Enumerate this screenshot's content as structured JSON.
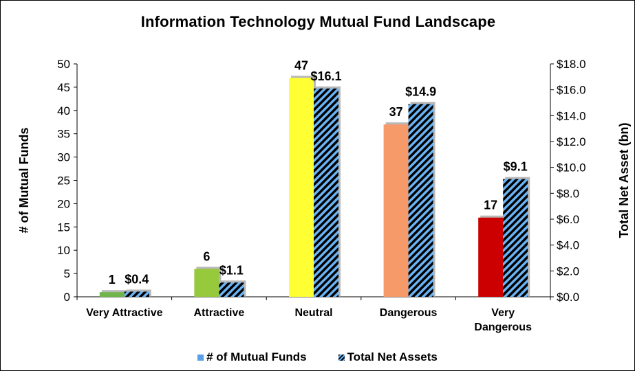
{
  "chart_data": {
    "type": "bar",
    "title": "Information Technology  Mutual Fund Landscape",
    "categories": [
      "Very Attractive",
      "Attractive",
      "Neutral",
      "Dangerous",
      "Very Dangerous"
    ],
    "category_lines": [
      [
        "Very Attractive"
      ],
      [
        "Attractive"
      ],
      [
        "Neutral"
      ],
      [
        "Dangerous"
      ],
      [
        "Very",
        "Dangerous"
      ]
    ],
    "series": [
      {
        "name": "# of Mutual Funds",
        "axis": "left",
        "values": [
          1,
          6,
          47,
          37,
          17
        ],
        "labels": [
          "1",
          "6",
          "47",
          "37",
          "17"
        ],
        "colors": [
          "#6fb54a",
          "#97c93c",
          "#ffff33",
          "#f79a6a",
          "#cc0000"
        ]
      },
      {
        "name": "Total Net Assets",
        "axis": "right",
        "values": [
          0.4,
          1.1,
          16.1,
          14.9,
          9.1
        ],
        "labels": [
          "$0.4",
          "$1.1",
          "$16.1",
          "$14.9",
          "$9.1"
        ],
        "pattern": "black/blue diagonal stripes"
      }
    ],
    "ylabel": "# of Mutual Funds",
    "y2label": "Total Net Asset (bn)",
    "ylim": [
      0,
      50
    ],
    "y2lim": [
      0,
      18
    ],
    "yticks": [
      "0",
      "5",
      "10",
      "15",
      "20",
      "25",
      "30",
      "35",
      "40",
      "45",
      "50"
    ],
    "y2ticks": [
      "$0.0",
      "$2.0",
      "$4.0",
      "$6.0",
      "$8.0",
      "$10.0",
      "$12.0",
      "$14.0",
      "$16.0",
      "$18.0"
    ],
    "grid": false,
    "legend_position": "bottom"
  },
  "legend": {
    "funds_label": "# of Mutual Funds",
    "assets_label": "Total Net Assets"
  }
}
